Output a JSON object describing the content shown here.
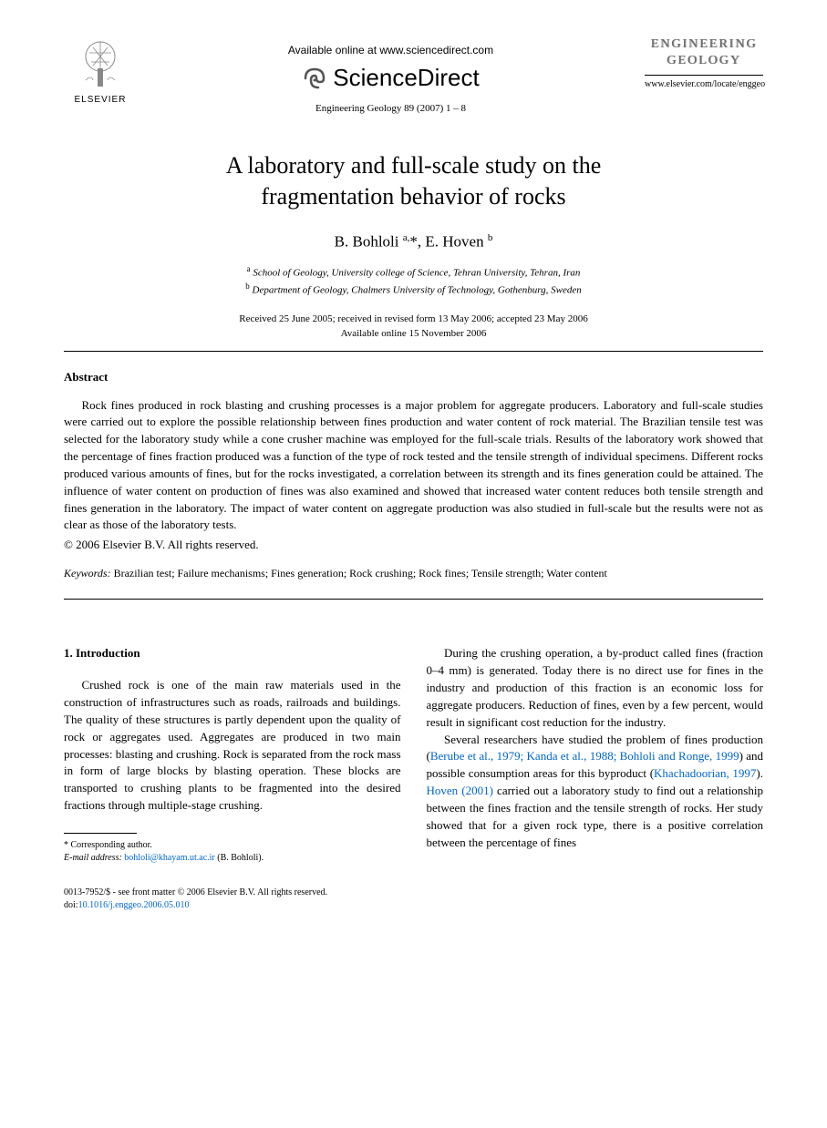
{
  "header": {
    "available_online": "Available online at www.sciencedirect.com",
    "sciencedirect": "ScienceDirect",
    "citation": "Engineering Geology 89 (2007) 1 – 8",
    "elsevier": "ELSEVIER",
    "journal_name_line1": "ENGINEERING",
    "journal_name_line2": "GEOLOGY",
    "journal_url": "www.elsevier.com/locate/enggeo"
  },
  "title": "A laboratory and full-scale study on the fragmentation behavior of rocks",
  "authors_html": "B. Bohloli <sup>a,</sup>*, E. Hoven <sup>b</sup>",
  "affiliations": [
    {
      "sup": "a",
      "text": "School of Geology, University college of Science, Tehran University, Tehran, Iran"
    },
    {
      "sup": "b",
      "text": "Department of Geology, Chalmers University of Technology, Gothenburg, Sweden"
    }
  ],
  "dates": {
    "line1": "Received 25 June 2005; received in revised form 13 May 2006; accepted 23 May 2006",
    "line2": "Available online 15 November 2006"
  },
  "abstract": {
    "heading": "Abstract",
    "text": "Rock fines produced in rock blasting and crushing processes is a major problem for aggregate producers. Laboratory and full-scale studies were carried out to explore the possible relationship between fines production and water content of rock material. The Brazilian tensile test was selected for the laboratory study while a cone crusher machine was employed for the full-scale trials. Results of the laboratory work showed that the percentage of fines fraction produced was a function of the type of rock tested and the tensile strength of individual specimens. Different rocks produced various amounts of fines, but for the rocks investigated, a correlation between its strength and its fines generation could be attained. The influence of water content on production of fines was also examined and showed that increased water content reduces both tensile strength and fines generation in the laboratory. The impact of water content on aggregate production was also studied in full-scale but the results were not as clear as those of the laboratory tests.",
    "copyright": "© 2006 Elsevier B.V. All rights reserved."
  },
  "keywords": {
    "label": "Keywords:",
    "text": " Brazilian test; Failure mechanisms; Fines generation; Rock crushing; Rock fines; Tensile strength; Water content"
  },
  "introduction": {
    "heading": "1. Introduction",
    "para1": "Crushed rock is one of the main raw materials used in the construction of infrastructures such as roads, railroads and buildings. The quality of these structures is partly dependent upon the quality of rock or aggregates used. Aggregates are produced in two main processes: blasting and crushing. Rock is separated from the rock mass in form of large blocks by blasting operation. These blocks are transported to crushing plants to be fragmented into the desired fractions through multiple-stage crushing.",
    "para2_pre": "During the crushing operation, a by-product called fines (fraction 0–4 mm) is generated. Today there is no direct use for fines in the industry and production of this fraction is an economic loss for aggregate producers. Reduction of fines, even by a few percent, would result in significant cost reduction for the industry.",
    "para3_pre": "Several researchers have studied the problem of fines production (",
    "ref1": "Berube et al., 1979; Kanda et al., 1988; Bohloli and Ronge, 1999",
    "para3_mid1": ") and possible consumption areas for this byproduct (",
    "ref2": "Khachadoorian, 1997",
    "para3_mid2": "). ",
    "ref3": "Hoven (2001)",
    "para3_post": " carried out a laboratory study to find out a relationship between the fines fraction and the tensile strength of rocks. Her study showed that for a given rock type, there is a positive correlation between the percentage of fines"
  },
  "footnote": {
    "corresponding": "* Corresponding author.",
    "email_label": "E-mail address:",
    "email": "bohloli@khayam.ut.ac.ir",
    "email_author": " (B. Bohloli)."
  },
  "footer": {
    "line1": "0013-7952/$ - see front matter © 2006 Elsevier B.V. All rights reserved.",
    "doi_label": "doi:",
    "doi": "10.1016/j.enggeo.2006.05.010"
  },
  "colors": {
    "link": "#0066cc",
    "text": "#000000",
    "bg": "#ffffff"
  }
}
